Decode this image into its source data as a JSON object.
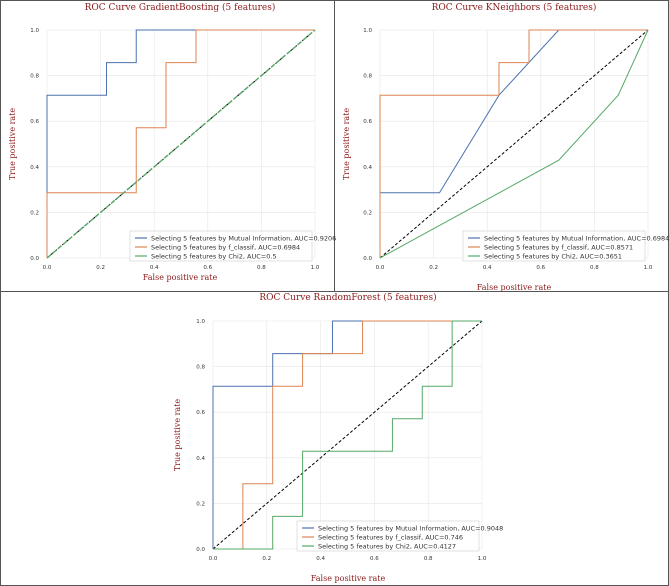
{
  "chart_data": [
    {
      "type": "line",
      "title": "ROC Curve GradientBoosting (5 features)",
      "xlabel": "False positive rate",
      "ylabel": "True positive rate",
      "xlim": [
        0,
        1
      ],
      "ylim": [
        0,
        1
      ],
      "xticks": [
        "0.0",
        "0.2",
        "0.4",
        "0.6",
        "0.8",
        "1.0"
      ],
      "yticks": [
        "0.0",
        "0.2",
        "0.4",
        "0.6",
        "0.8",
        "1.0"
      ],
      "grid": true,
      "legend_position": "lower-right",
      "series": [
        {
          "name": "Selecting 5 features by Mutual Information, AUC=0.9206",
          "color": "#4c72b0",
          "x": [
            0,
            0,
            0.222,
            0.222,
            0.333,
            0.333,
            0.556,
            0.556,
            1
          ],
          "y": [
            0,
            0.714,
            0.714,
            0.857,
            0.857,
            1,
            1,
            1,
            1
          ]
        },
        {
          "name": "Selecting 5 features by f_classif, AUC=0.6984",
          "color": "#dd8452",
          "x": [
            0,
            0,
            0.333,
            0.333,
            0.444,
            0.444,
            0.556,
            0.556,
            1
          ],
          "y": [
            0,
            0.286,
            0.286,
            0.571,
            0.571,
            0.857,
            0.857,
            1,
            1
          ]
        },
        {
          "name": "Selecting 5 features by Chi2, AUC=0.5",
          "color": "#55a868",
          "x": [
            0,
            1
          ],
          "y": [
            0,
            1
          ]
        }
      ]
    },
    {
      "type": "line",
      "title": "ROC Curve KNeighbors (5 features)",
      "xlabel": "False positive rate",
      "ylabel": "True positive rate",
      "xlim": [
        0,
        1
      ],
      "ylim": [
        0,
        1
      ],
      "xticks": [
        "0.0",
        "0.2",
        "0.4",
        "0.6",
        "0.8",
        "1.0"
      ],
      "yticks": [
        "0.0",
        "0.2",
        "0.4",
        "0.6",
        "0.8",
        "1.0"
      ],
      "grid": true,
      "legend_position": "lower-right",
      "series": [
        {
          "name": "Selecting 5 features by Mutual Information, AUC=0.6984",
          "color": "#4c72b0",
          "x": [
            0,
            0,
            0.222,
            0.444,
            0.667,
            1
          ],
          "y": [
            0,
            0.286,
            0.286,
            0.714,
            1,
            1
          ]
        },
        {
          "name": "Selecting 5 features by f_classif, AUC=0.8571",
          "color": "#dd8452",
          "x": [
            0,
            0,
            0.444,
            0.444,
            0.556,
            0.556,
            1
          ],
          "y": [
            0,
            0.714,
            0.714,
            0.857,
            0.857,
            1,
            1
          ]
        },
        {
          "name": "Selecting 5 features by Chi2, AUC=0.3651",
          "color": "#55a868",
          "x": [
            0,
            0.667,
            0.889,
            1
          ],
          "y": [
            0,
            0.429,
            0.714,
            1
          ]
        }
      ]
    },
    {
      "type": "line",
      "title": "ROC Curve RandomForest (5 features)",
      "xlabel": "False positive rate",
      "ylabel": "True positive rate",
      "xlim": [
        0,
        1
      ],
      "ylim": [
        0,
        1
      ],
      "xticks": [
        "0.0",
        "0.2",
        "0.4",
        "0.6",
        "0.8",
        "1.0"
      ],
      "yticks": [
        "0.0",
        "0.2",
        "0.4",
        "0.6",
        "0.8",
        "1.0"
      ],
      "grid": true,
      "legend_position": "lower-right",
      "series": [
        {
          "name": "Selecting 5 features by Mutual Information, AUC=0.9048",
          "color": "#4c72b0",
          "x": [
            0,
            0,
            0.222,
            0.222,
            0.444,
            0.444,
            0.556,
            1
          ],
          "y": [
            0,
            0.714,
            0.714,
            0.857,
            0.857,
            1,
            1,
            1
          ]
        },
        {
          "name": "Selecting 5 features by f_classif, AUC=0.746",
          "color": "#dd8452",
          "x": [
            0,
            0.111,
            0.111,
            0.222,
            0.222,
            0.333,
            0.333,
            0.556,
            0.556,
            1
          ],
          "y": [
            0,
            0,
            0.286,
            0.286,
            0.714,
            0.714,
            0.857,
            0.857,
            1,
            1
          ]
        },
        {
          "name": "Selecting 5 features by Chi2, AUC=0.4127",
          "color": "#55a868",
          "x": [
            0,
            0.222,
            0.222,
            0.333,
            0.333,
            0.667,
            0.667,
            0.778,
            0.778,
            0.889,
            0.889,
            1
          ],
          "y": [
            0,
            0,
            0.143,
            0.143,
            0.429,
            0.429,
            0.571,
            0.571,
            0.714,
            0.714,
            1,
            1
          ]
        }
      ]
    }
  ]
}
